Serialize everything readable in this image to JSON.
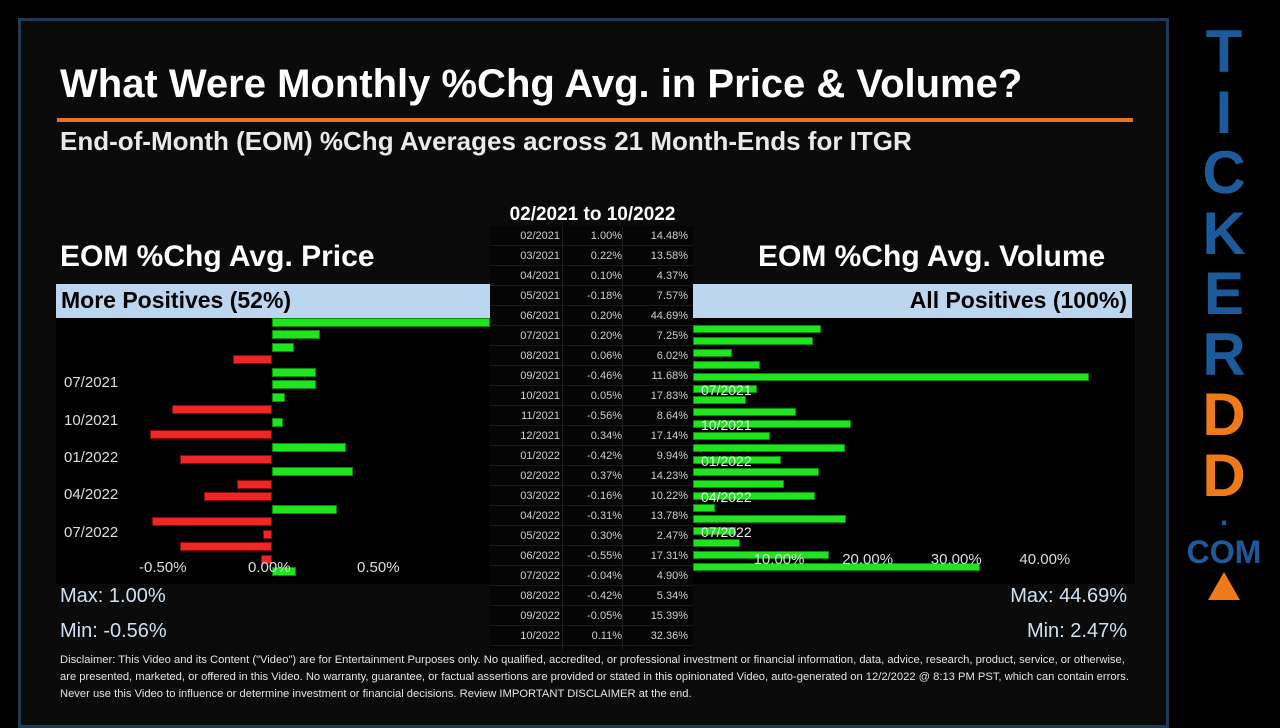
{
  "title": "What Were Monthly %Chg Avg. in Price & Volume?",
  "subtitle": "End-of-Month (EOM) %Chg Averages across 21 Month-Ends for ITGR",
  "range": "02/2021 to 10/2022",
  "price_panel": {
    "title": "EOM %Chg Avg. Price",
    "header": "More Positives (52%)",
    "max": "Max: 1.00%",
    "min": "Min: -0.56%"
  },
  "volume_panel": {
    "title": "EOM %Chg Avg. Volume",
    "header": "All Positives (100%)",
    "max": "Max: 44.69%",
    "min": "Min: 2.47%"
  },
  "table": [
    [
      "02/2021",
      "1.00%",
      "14.48%"
    ],
    [
      "03/2021",
      "0.22%",
      "13.58%"
    ],
    [
      "04/2021",
      "0.10%",
      "4.37%"
    ],
    [
      "05/2021",
      "-0.18%",
      "7.57%"
    ],
    [
      "06/2021",
      "0.20%",
      "44.69%"
    ],
    [
      "07/2021",
      "0.20%",
      "7.25%"
    ],
    [
      "08/2021",
      "0.06%",
      "6.02%"
    ],
    [
      "09/2021",
      "-0.46%",
      "11.68%"
    ],
    [
      "10/2021",
      "0.05%",
      "17.83%"
    ],
    [
      "11/2021",
      "-0.56%",
      "8.64%"
    ],
    [
      "12/2021",
      "0.34%",
      "17.14%"
    ],
    [
      "01/2022",
      "-0.42%",
      "9.94%"
    ],
    [
      "02/2022",
      "0.37%",
      "14.23%"
    ],
    [
      "03/2022",
      "-0.16%",
      "10.22%"
    ],
    [
      "04/2022",
      "-0.31%",
      "13.78%"
    ],
    [
      "05/2022",
      "0.30%",
      "2.47%"
    ],
    [
      "06/2022",
      "-0.55%",
      "17.31%"
    ],
    [
      "07/2022",
      "-0.04%",
      "4.90%"
    ],
    [
      "08/2022",
      "-0.42%",
      "5.34%"
    ],
    [
      "09/2022",
      "-0.05%",
      "15.39%"
    ],
    [
      "10/2022",
      "0.11%",
      "32.36%"
    ]
  ],
  "chart_data": [
    {
      "type": "bar",
      "orientation": "horizontal",
      "categories": [
        "02/2021",
        "03/2021",
        "04/2021",
        "05/2021",
        "06/2021",
        "07/2021",
        "08/2021",
        "09/2021",
        "10/2021",
        "11/2021",
        "12/2021",
        "01/2022",
        "02/2022",
        "03/2022",
        "04/2022",
        "05/2022",
        "06/2022",
        "07/2022",
        "08/2022",
        "09/2022",
        "10/2022"
      ],
      "values": [
        1.0,
        0.22,
        0.1,
        -0.18,
        0.2,
        0.2,
        0.06,
        -0.46,
        0.05,
        -0.56,
        0.34,
        -0.42,
        0.37,
        -0.16,
        -0.31,
        0.3,
        -0.55,
        -0.04,
        -0.42,
        -0.05,
        0.11
      ],
      "category_labels": [
        "07/2021",
        "10/2021",
        "01/2022",
        "04/2022",
        "07/2022"
      ],
      "x_ticks": [
        "-0.50%",
        "0.00%",
        "0.50%"
      ],
      "xlim": [
        -0.55,
        1.0
      ],
      "colors": {
        "positive": "#1fe51f",
        "negative": "#ef2626"
      }
    },
    {
      "type": "bar",
      "orientation": "horizontal",
      "categories": [
        "02/2021",
        "03/2021",
        "04/2021",
        "05/2021",
        "06/2021",
        "07/2021",
        "08/2021",
        "09/2021",
        "10/2021",
        "11/2021",
        "12/2021",
        "01/2022",
        "02/2022",
        "03/2022",
        "04/2022",
        "05/2022",
        "06/2022",
        "07/2022",
        "08/2022",
        "09/2022",
        "10/2022"
      ],
      "values": [
        14.48,
        13.58,
        4.37,
        7.57,
        44.69,
        7.25,
        6.02,
        11.68,
        17.83,
        8.64,
        17.14,
        9.94,
        14.23,
        10.22,
        13.78,
        2.47,
        17.31,
        4.9,
        5.34,
        15.39,
        32.36
      ],
      "category_labels": [
        "07/2021",
        "10/2021",
        "01/2022",
        "04/2022",
        "07/2022"
      ],
      "x_ticks": [
        "10.00%",
        "20.00%",
        "30.00%",
        "40.00%"
      ],
      "xlim": [
        0,
        49
      ],
      "colors": {
        "positive": "#1fe51f"
      }
    }
  ],
  "disclaimer": "Disclaimer: This Video and its Content (\"Video\") are for Entertainment Purposes only. No qualified, accredited, or professional investment or financial information, data, advice, research, product, service, or otherwise, are presented, marketed, or offered in this Video. No warranty, guarantee, or factual assertions are provided or stated in this opinionated Video, auto-generated on 12/2/2022 @ 8:13 PM PST, which can contain errors. Never use this Video to influence or determine investment or financial decisions. Review IMPORTANT DISCLAIMER at the end.",
  "brand": {
    "letters": [
      "T",
      "I",
      "C",
      "K",
      "E",
      "R",
      "D",
      "D",
      "."
    ],
    "suffix": "COM",
    "colors": {
      "blue": "#1c5a9c",
      "orange": "#ee7a1a"
    }
  }
}
